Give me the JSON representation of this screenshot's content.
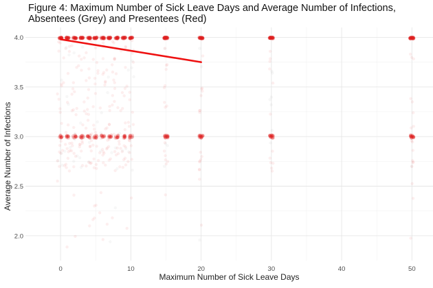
{
  "chart_data": {
    "type": "scatter",
    "title": "Figure 4: Maximum Number of Sick Leave Days and Average Number of Infections,\nAbsentees (Grey) and Presentees (Red)",
    "xlabel": "Maximum Number of Sick Leave Days",
    "ylabel": "Average Number of Infections",
    "xlim": [
      -5,
      53
    ],
    "ylim": [
      1.75,
      4.1
    ],
    "xticks": [
      0,
      10,
      20,
      30,
      40,
      50
    ],
    "yticks": [
      2.0,
      2.5,
      3.0,
      3.5,
      4.0
    ],
    "xtick_labels": [
      "0",
      "10",
      "20",
      "30",
      "40",
      "50"
    ],
    "ytick_labels": [
      "2.0",
      "2.5",
      "3.0",
      "3.5",
      "4.0"
    ],
    "grid": true,
    "legend": "none",
    "point_x_values": [
      0,
      1,
      2,
      3,
      4,
      5,
      6,
      7,
      8,
      9,
      10,
      15,
      20,
      30,
      50
    ],
    "point_clusters": [
      4.0,
      3.0
    ],
    "point_y_range": [
      1.85,
      4.0
    ],
    "trend_line": {
      "x": [
        0,
        20
      ],
      "y": [
        3.98,
        3.75
      ],
      "color": "#ee1111"
    },
    "colors": {
      "presentees": "#dd2222",
      "absentees": "#888888"
    }
  }
}
